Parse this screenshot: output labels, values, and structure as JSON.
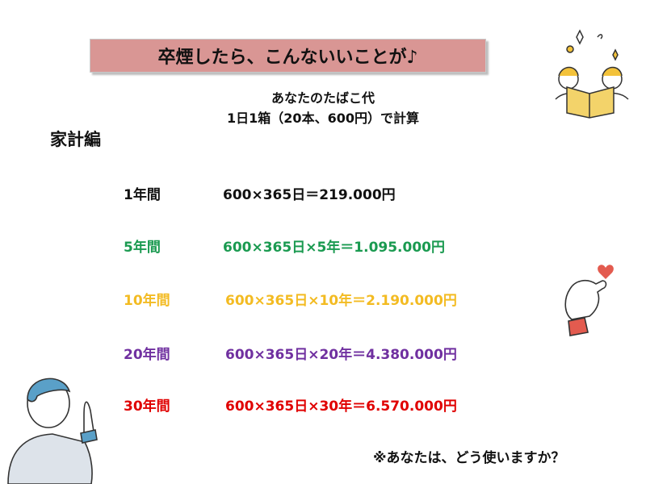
{
  "title": "卒煙したら、こんないいことが♪",
  "subtitle_line1": "あなたのたばこ代",
  "subtitle_line2": "1日1箱（20本、600円）で計算",
  "section_heading": "家計編",
  "rows": [
    {
      "period": "1年間",
      "calc": "600×365日＝219.000円",
      "color": "#111111"
    },
    {
      "period": "5年間",
      "calc": "600×365日×5年＝1.095.000円",
      "color": "#1a9a50"
    },
    {
      "period": "10年間",
      "calc": "600×365日×10年＝2.190.000円",
      "color": "#f3bb22"
    },
    {
      "period": "20年間",
      "calc": "600×365日×20年＝4.380.000円",
      "color": "#7030a0"
    },
    {
      "period": "30年間",
      "calc": "600×365日×30年＝6.570.000円",
      "color": "#e00000"
    }
  ],
  "note": "※あなたは、どう使いますか？",
  "colors": {
    "title_bg": "#d99694"
  }
}
